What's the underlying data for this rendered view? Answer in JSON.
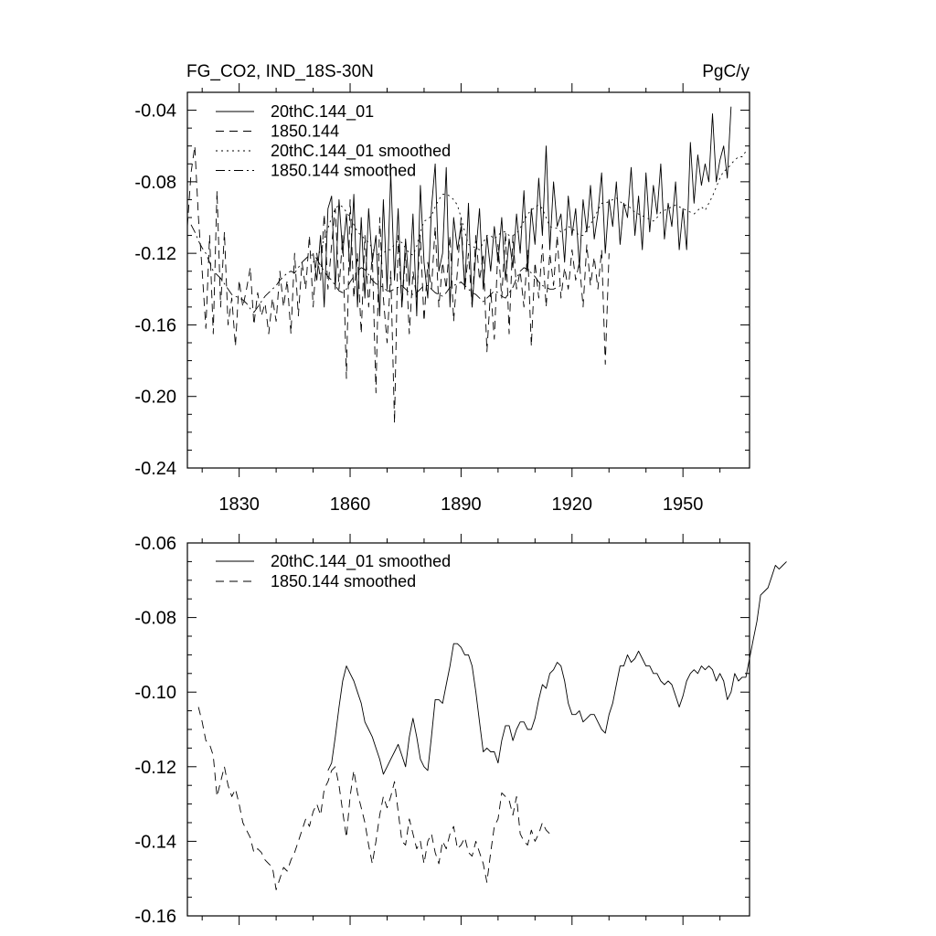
{
  "chart_data": [
    {
      "type": "line",
      "title_left": "FG_CO2, IND_18S-30N",
      "title_right": "PgC/y",
      "xlabel": "",
      "ylabel": "",
      "xlim": [
        1816,
        1968
      ],
      "ylim": [
        -0.24,
        -0.03
      ],
      "x_ticks": [
        1830,
        1860,
        1890,
        1920,
        1950
      ],
      "x_tick_labels": [
        "1830",
        "1860",
        "1890",
        "1920",
        "1950"
      ],
      "y_ticks": [
        -0.04,
        -0.08,
        -0.12,
        -0.16,
        -0.2,
        -0.24
      ],
      "y_tick_labels": [
        "-0.04",
        "-0.08",
        "-0.12",
        "-0.16",
        "-0.20",
        "-0.24"
      ],
      "legend_position": "top-left",
      "series": [
        {
          "name": "20thC.144_01",
          "style": "solid",
          "x_start": 1850,
          "x_step": 1,
          "values": [
            -0.12,
            -0.135,
            -0.11,
            -0.15,
            -0.095,
            -0.088,
            -0.14,
            -0.09,
            -0.12,
            -0.098,
            -0.13,
            -0.087,
            -0.15,
            -0.1,
            -0.145,
            -0.095,
            -0.125,
            -0.11,
            -0.155,
            -0.09,
            -0.14,
            -0.075,
            -0.135,
            -0.095,
            -0.15,
            -0.112,
            -0.138,
            -0.098,
            -0.155,
            -0.082,
            -0.125,
            -0.145,
            -0.095,
            -0.07,
            -0.13,
            -0.12,
            -0.072,
            -0.15,
            -0.1,
            -0.118,
            -0.105,
            -0.14,
            -0.092,
            -0.15,
            -0.12,
            -0.095,
            -0.14,
            -0.11,
            -0.13,
            -0.105,
            -0.125,
            -0.1,
            -0.135,
            -0.112,
            -0.128,
            -0.098,
            -0.12,
            -0.085,
            -0.13,
            -0.095,
            -0.115,
            -0.078,
            -0.11,
            -0.06,
            -0.118,
            -0.08,
            -0.105,
            -0.098,
            -0.125,
            -0.088,
            -0.11,
            -0.095,
            -0.128,
            -0.09,
            -0.108,
            -0.082,
            -0.112,
            -0.098,
            -0.075,
            -0.12,
            -0.09,
            -0.105,
            -0.08,
            -0.115,
            -0.092,
            -0.1,
            -0.072,
            -0.11,
            -0.088,
            -0.118,
            -0.075,
            -0.108,
            -0.082,
            -0.098,
            -0.07,
            -0.112,
            -0.092,
            -0.105,
            -0.08,
            -0.118,
            -0.095,
            -0.118,
            -0.058,
            -0.092,
            -0.065,
            -0.082,
            -0.07,
            -0.08,
            -0.042,
            -0.08,
            -0.068,
            -0.06,
            -0.078,
            -0.038
          ]
        },
        {
          "name": "1850.144",
          "style": "dashed",
          "x_start": 1816,
          "x_step": 1,
          "values": [
            -0.105,
            -0.075,
            -0.06,
            -0.1,
            -0.13,
            -0.162,
            -0.11,
            -0.165,
            -0.085,
            -0.15,
            -0.108,
            -0.16,
            -0.145,
            -0.172,
            -0.135,
            -0.15,
            -0.14,
            -0.128,
            -0.16,
            -0.142,
            -0.155,
            -0.148,
            -0.165,
            -0.145,
            -0.158,
            -0.13,
            -0.15,
            -0.135,
            -0.165,
            -0.12,
            -0.155,
            -0.125,
            -0.14,
            -0.11,
            -0.15,
            -0.12,
            -0.135,
            -0.098,
            -0.14,
            -0.115,
            -0.095,
            -0.14,
            -0.11,
            -0.19,
            -0.09,
            -0.145,
            -0.12,
            -0.165,
            -0.11,
            -0.15,
            -0.12,
            -0.198,
            -0.1,
            -0.145,
            -0.17,
            -0.13,
            -0.215,
            -0.11,
            -0.15,
            -0.12,
            -0.165,
            -0.13,
            -0.145,
            -0.11,
            -0.158,
            -0.125,
            -0.14,
            -0.105,
            -0.15,
            -0.125,
            -0.14,
            -0.11,
            -0.158,
            -0.13,
            -0.1,
            -0.14,
            -0.12,
            -0.15,
            -0.11,
            -0.135,
            -0.12,
            -0.175,
            -0.14,
            -0.168,
            -0.115,
            -0.145,
            -0.108,
            -0.165,
            -0.11,
            -0.14,
            -0.13,
            -0.15,
            -0.118,
            -0.172,
            -0.125,
            -0.145,
            -0.115,
            -0.15,
            -0.12,
            -0.138,
            -0.11,
            -0.145,
            -0.128,
            -0.14,
            -0.118,
            -0.135,
            -0.125,
            -0.15,
            -0.115,
            -0.138,
            -0.122,
            -0.14,
            -0.118,
            -0.182,
            -0.12
          ]
        },
        {
          "name": "20thC.144_01 smoothed",
          "style": "dotted",
          "x_start": 1850,
          "x_step": 1,
          "values": [
            -0.125,
            -0.123,
            -0.118,
            -0.112,
            -0.106,
            -0.1,
            -0.095,
            -0.093,
            -0.094,
            -0.097,
            -0.1,
            -0.104,
            -0.108,
            -0.11,
            -0.112,
            -0.114,
            -0.117,
            -0.12,
            -0.122,
            -0.12,
            -0.118,
            -0.118,
            -0.115,
            -0.113,
            -0.114,
            -0.117,
            -0.12,
            -0.121,
            -0.116,
            -0.108,
            -0.102,
            -0.101,
            -0.099,
            -0.094,
            -0.09,
            -0.087,
            -0.087,
            -0.088,
            -0.09,
            -0.093,
            -0.1,
            -0.108,
            -0.115,
            -0.116,
            -0.117,
            -0.118,
            -0.114,
            -0.11,
            -0.11,
            -0.112,
            -0.11,
            -0.108,
            -0.108,
            -0.11,
            -0.11,
            -0.109,
            -0.106,
            -0.102,
            -0.098,
            -0.096,
            -0.094,
            -0.093,
            -0.095,
            -0.1,
            -0.105,
            -0.106,
            -0.106,
            -0.108,
            -0.107,
            -0.105,
            -0.106,
            -0.108,
            -0.11,
            -0.11,
            -0.107,
            -0.104,
            -0.1,
            -0.096,
            -0.092,
            -0.092,
            -0.091,
            -0.09,
            -0.089,
            -0.091,
            -0.093,
            -0.093,
            -0.095,
            -0.097,
            -0.098,
            -0.099,
            -0.1,
            -0.101,
            -0.102,
            -0.1,
            -0.097,
            -0.096,
            -0.095,
            -0.094,
            -0.093,
            -0.094,
            -0.095,
            -0.096,
            -0.097,
            -0.098,
            -0.096,
            -0.094,
            -0.096,
            -0.092,
            -0.088,
            -0.083,
            -0.078,
            -0.074,
            -0.073,
            -0.07,
            -0.068,
            -0.066,
            -0.066,
            -0.063
          ]
        },
        {
          "name": "1850.144 smoothed",
          "style": "dashdot",
          "x_start": 1817,
          "x_step": 1,
          "values": [
            -0.104,
            -0.108,
            -0.113,
            -0.117,
            -0.12,
            -0.125,
            -0.13,
            -0.132,
            -0.134,
            -0.137,
            -0.14,
            -0.143,
            -0.144,
            -0.145,
            -0.146,
            -0.148,
            -0.151,
            -0.153,
            -0.15,
            -0.147,
            -0.144,
            -0.142,
            -0.14,
            -0.138,
            -0.135,
            -0.133,
            -0.131,
            -0.13,
            -0.131,
            -0.128,
            -0.125,
            -0.123,
            -0.121,
            -0.121,
            -0.123,
            -0.127,
            -0.13,
            -0.133,
            -0.135,
            -0.138,
            -0.141,
            -0.142,
            -0.14,
            -0.136,
            -0.133,
            -0.13,
            -0.128,
            -0.129,
            -0.132,
            -0.135,
            -0.137,
            -0.138,
            -0.139,
            -0.141,
            -0.141,
            -0.14,
            -0.139,
            -0.138,
            -0.14,
            -0.142,
            -0.143,
            -0.142,
            -0.14,
            -0.138,
            -0.138,
            -0.14,
            -0.142,
            -0.143,
            -0.144,
            -0.142,
            -0.139,
            -0.138,
            -0.137,
            -0.136,
            -0.138,
            -0.14,
            -0.142,
            -0.143,
            -0.145,
            -0.147,
            -0.145,
            -0.143,
            -0.141,
            -0.142,
            -0.144,
            -0.145,
            -0.142,
            -0.139,
            -0.134,
            -0.13,
            -0.128,
            -0.129,
            -0.131,
            -0.133,
            -0.136,
            -0.138,
            -0.139,
            -0.14,
            -0.14,
            -0.139,
            -0.138
          ]
        }
      ]
    },
    {
      "type": "line",
      "title_left": "",
      "title_right": "",
      "xlabel": "",
      "ylabel": "",
      "xlim": [
        1816,
        1968
      ],
      "ylim": [
        -0.16,
        -0.06
      ],
      "x_ticks": [
        1830,
        1860,
        1890,
        1920,
        1950
      ],
      "x_tick_labels": [],
      "y_ticks": [
        -0.06,
        -0.08,
        -0.1,
        -0.12,
        -0.14,
        -0.16
      ],
      "y_tick_labels": [
        "-0.06",
        "-0.08",
        "-0.10",
        "-0.12",
        "-0.14",
        "-0.16"
      ],
      "legend_position": "top-left",
      "series": [
        {
          "name": "20thC.144_01 smoothed",
          "style": "solid",
          "x_start": 1854,
          "x_step": 1,
          "values": [
            -0.121,
            -0.119,
            -0.112,
            -0.104,
            -0.097,
            -0.093,
            -0.095,
            -0.097,
            -0.1,
            -0.103,
            -0.108,
            -0.11,
            -0.112,
            -0.115,
            -0.118,
            -0.122,
            -0.12,
            -0.118,
            -0.116,
            -0.114,
            -0.117,
            -0.12,
            -0.112,
            -0.107,
            -0.112,
            -0.118,
            -0.12,
            -0.121,
            -0.112,
            -0.102,
            -0.102,
            -0.103,
            -0.098,
            -0.093,
            -0.087,
            -0.087,
            -0.088,
            -0.09,
            -0.09,
            -0.093,
            -0.1,
            -0.108,
            -0.116,
            -0.115,
            -0.116,
            -0.116,
            -0.119,
            -0.113,
            -0.109,
            -0.109,
            -0.113,
            -0.11,
            -0.108,
            -0.108,
            -0.11,
            -0.11,
            -0.107,
            -0.102,
            -0.098,
            -0.099,
            -0.095,
            -0.094,
            -0.092,
            -0.093,
            -0.097,
            -0.103,
            -0.106,
            -0.106,
            -0.105,
            -0.108,
            -0.107,
            -0.106,
            -0.106,
            -0.108,
            -0.11,
            -0.111,
            -0.106,
            -0.103,
            -0.098,
            -0.093,
            -0.093,
            -0.09,
            -0.092,
            -0.091,
            -0.089,
            -0.091,
            -0.093,
            -0.093,
            -0.095,
            -0.095,
            -0.097,
            -0.098,
            -0.097,
            -0.098,
            -0.101,
            -0.104,
            -0.101,
            -0.097,
            -0.095,
            -0.094,
            -0.095,
            -0.093,
            -0.094,
            -0.093,
            -0.094,
            -0.097,
            -0.095,
            -0.097,
            -0.102,
            -0.1,
            -0.095,
            -0.097,
            -0.096,
            -0.096,
            -0.091,
            -0.086,
            -0.081,
            -0.074,
            -0.073,
            -0.072,
            -0.069,
            -0.066,
            -0.067,
            -0.066,
            -0.065
          ]
        },
        {
          "name": "1850.144 smoothed",
          "style": "dashed",
          "x_start": 1819,
          "x_step": 1,
          "values": [
            -0.104,
            -0.108,
            -0.113,
            -0.114,
            -0.117,
            -0.128,
            -0.124,
            -0.12,
            -0.125,
            -0.128,
            -0.126,
            -0.13,
            -0.135,
            -0.137,
            -0.139,
            -0.143,
            -0.142,
            -0.143,
            -0.145,
            -0.146,
            -0.147,
            -0.153,
            -0.15,
            -0.147,
            -0.148,
            -0.145,
            -0.143,
            -0.14,
            -0.137,
            -0.134,
            -0.136,
            -0.132,
            -0.13,
            -0.133,
            -0.126,
            -0.124,
            -0.121,
            -0.12,
            -0.125,
            -0.132,
            -0.139,
            -0.128,
            -0.121,
            -0.127,
            -0.131,
            -0.135,
            -0.141,
            -0.146,
            -0.14,
            -0.133,
            -0.128,
            -0.131,
            -0.128,
            -0.124,
            -0.132,
            -0.14,
            -0.141,
            -0.134,
            -0.138,
            -0.142,
            -0.14,
            -0.146,
            -0.14,
            -0.138,
            -0.143,
            -0.146,
            -0.14,
            -0.142,
            -0.138,
            -0.136,
            -0.142,
            -0.141,
            -0.139,
            -0.143,
            -0.144,
            -0.14,
            -0.143,
            -0.146,
            -0.151,
            -0.143,
            -0.136,
            -0.134,
            -0.127,
            -0.128,
            -0.129,
            -0.133,
            -0.128,
            -0.138,
            -0.14,
            -0.141,
            -0.137,
            -0.14,
            -0.138,
            -0.135,
            -0.137,
            -0.138
          ]
        }
      ]
    }
  ]
}
